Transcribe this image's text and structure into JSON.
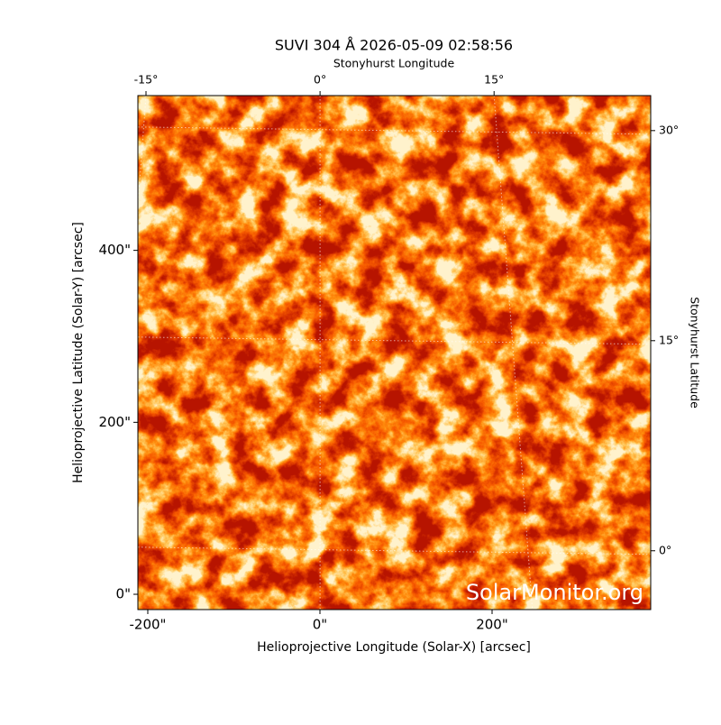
{
  "chart_data": {
    "type": "image",
    "title": "SUVI 304 Å 2026-05-09 02:58:56",
    "xlabel": "Helioprojective Longitude (Solar-X) [arcsec]",
    "ylabel": "Helioprojective Latitude (Solar-Y) [arcsec]",
    "x2label": "Stonyhurst Longitude",
    "y2label": "Stonyhurst Latitude",
    "annotation": "SolarMonitor.org",
    "xlim": [
      -211.5,
      384.3
    ],
    "ylim": [
      -17.8,
      580
    ],
    "xticks": [
      {
        "value": -200,
        "label": "-200\""
      },
      {
        "value": 0,
        "label": "0\""
      },
      {
        "value": 200,
        "label": "200\""
      }
    ],
    "yticks": [
      {
        "value": 0,
        "label": "0\""
      },
      {
        "value": 200,
        "label": "200\""
      },
      {
        "value": 400,
        "label": "400\""
      }
    ],
    "x2lim": [
      -15.7,
      28.5
    ],
    "y2lim": [
      -4.2,
      32.5
    ],
    "x2ticks": [
      {
        "value": -15,
        "label": "-15°"
      },
      {
        "value": 0,
        "label": "0°"
      },
      {
        "value": 15,
        "label": "15°"
      }
    ],
    "y2ticks": [
      {
        "value": 0,
        "label": "0°"
      },
      {
        "value": 15,
        "label": "15°"
      },
      {
        "value": 30,
        "label": "30°"
      }
    ],
    "grid": true
  }
}
